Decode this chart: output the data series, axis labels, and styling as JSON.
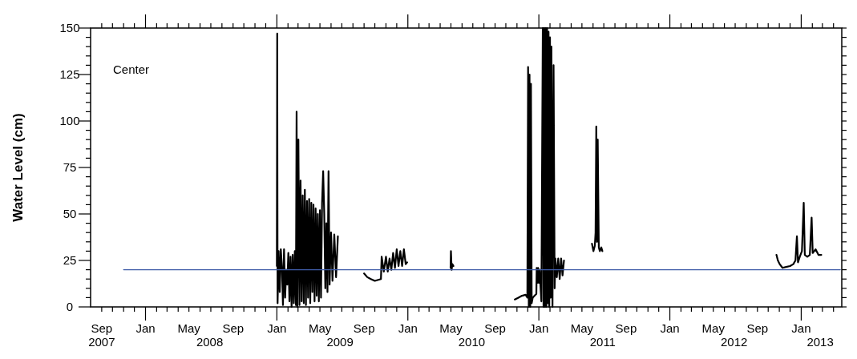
{
  "chart_data": {
    "type": "line",
    "ylabel": "Water Level (cm)",
    "annotations": [
      "Center"
    ],
    "xlim": [
      "2007-08-01",
      "2013-04-24"
    ],
    "ylim": [
      0,
      150
    ],
    "yticks": [
      0,
      {
        "value": 5,
        "label": null
      },
      {
        "value": 10,
        "label": null
      },
      {
        "value": 15,
        "label": null
      },
      {
        "value": 20,
        "label": null
      },
      25,
      {
        "value": 30,
        "label": null
      },
      {
        "value": 35,
        "label": null
      },
      {
        "value": 40,
        "label": null
      },
      {
        "value": 45,
        "label": null
      },
      50,
      {
        "value": 55,
        "label": null
      },
      {
        "value": 60,
        "label": null
      },
      {
        "value": 65,
        "label": null
      },
      {
        "value": 70,
        "label": null
      },
      75,
      {
        "value": 80,
        "label": null
      },
      {
        "value": 85,
        "label": null
      },
      {
        "value": 90,
        "label": null
      },
      {
        "value": 95,
        "label": null
      },
      100,
      {
        "value": 105,
        "label": null
      },
      {
        "value": 110,
        "label": null
      },
      {
        "value": 115,
        "label": null
      },
      {
        "value": 120,
        "label": null
      },
      125,
      {
        "value": 130,
        "label": null
      },
      {
        "value": 135,
        "label": null
      },
      {
        "value": 140,
        "label": null
      },
      {
        "value": 145,
        "label": null
      },
      150
    ],
    "x2lim": [
      "2007-08-01",
      "2013-04-24"
    ],
    "x2ticks": [
      {
        "value": "2007-09-01",
        "label": "2007"
      },
      {
        "value": "2008-06-28",
        "label": "2008"
      },
      {
        "value": "2009-06-26",
        "label": "2009"
      },
      {
        "value": "2010-06-28",
        "label": "2010"
      },
      {
        "value": "2011-06-28",
        "label": "2011"
      },
      {
        "value": "2012-06-28",
        "label": "2012"
      },
      {
        "value": "2013-02-23",
        "label": "2013"
      }
    ],
    "xticks": [
      {
        "value": "2007-09-01",
        "label": "Sep"
      },
      {
        "value": "2007-10-01",
        "label": null
      },
      {
        "value": "2007-11-01",
        "label": null
      },
      {
        "value": "2007-12-01",
        "label": null
      },
      {
        "value": "2008-01-01",
        "label": "Jan"
      },
      {
        "value": "2008-02-01",
        "label": null
      },
      {
        "value": "2008-03-01",
        "label": null
      },
      {
        "value": "2008-04-01",
        "label": null
      },
      {
        "value": "2008-05-01",
        "label": "May"
      },
      {
        "value": "2008-06-01",
        "label": null
      },
      {
        "value": "2008-07-01",
        "label": null
      },
      {
        "value": "2008-08-01",
        "label": null
      },
      {
        "value": "2008-09-01",
        "label": "Sep"
      },
      {
        "value": "2008-10-01",
        "label": null
      },
      {
        "value": "2008-11-01",
        "label": null
      },
      {
        "value": "2008-12-01",
        "label": null
      },
      {
        "value": "2009-01-01",
        "label": "Jan"
      },
      {
        "value": "2009-02-01",
        "label": null
      },
      {
        "value": "2009-03-01",
        "label": null
      },
      {
        "value": "2009-04-01",
        "label": null
      },
      {
        "value": "2009-05-01",
        "label": "May"
      },
      {
        "value": "2009-06-01",
        "label": null
      },
      {
        "value": "2009-07-01",
        "label": null
      },
      {
        "value": "2009-08-01",
        "label": null
      },
      {
        "value": "2009-09-01",
        "label": "Sep"
      },
      {
        "value": "2009-10-01",
        "label": null
      },
      {
        "value": "2009-11-01",
        "label": null
      },
      {
        "value": "2009-12-01",
        "label": null
      },
      {
        "value": "2010-01-01",
        "label": "Jan"
      },
      {
        "value": "2010-02-01",
        "label": null
      },
      {
        "value": "2010-03-01",
        "label": null
      },
      {
        "value": "2010-04-01",
        "label": null
      },
      {
        "value": "2010-05-01",
        "label": "May"
      },
      {
        "value": "2010-06-01",
        "label": null
      },
      {
        "value": "2010-07-01",
        "label": null
      },
      {
        "value": "2010-08-01",
        "label": null
      },
      {
        "value": "2010-09-01",
        "label": "Sep"
      },
      {
        "value": "2010-10-01",
        "label": null
      },
      {
        "value": "2010-11-01",
        "label": null
      },
      {
        "value": "2010-12-01",
        "label": null
      },
      {
        "value": "2011-01-01",
        "label": "Jan"
      },
      {
        "value": "2011-02-01",
        "label": null
      },
      {
        "value": "2011-03-01",
        "label": null
      },
      {
        "value": "2011-04-01",
        "label": null
      },
      {
        "value": "2011-05-01",
        "label": "May"
      },
      {
        "value": "2011-06-01",
        "label": null
      },
      {
        "value": "2011-07-01",
        "label": null
      },
      {
        "value": "2011-08-01",
        "label": null
      },
      {
        "value": "2011-09-01",
        "label": "Sep"
      },
      {
        "value": "2011-10-01",
        "label": null
      },
      {
        "value": "2011-11-01",
        "label": null
      },
      {
        "value": "2011-12-01",
        "label": null
      },
      {
        "value": "2012-01-01",
        "label": "Jan"
      },
      {
        "value": "2012-02-01",
        "label": null
      },
      {
        "value": "2012-03-01",
        "label": null
      },
      {
        "value": "2012-04-01",
        "label": null
      },
      {
        "value": "2012-05-01",
        "label": "May"
      },
      {
        "value": "2012-06-01",
        "label": null
      },
      {
        "value": "2012-07-01",
        "label": null
      },
      {
        "value": "2012-08-01",
        "label": null
      },
      {
        "value": "2012-09-01",
        "label": "Sep"
      },
      {
        "value": "2012-10-01",
        "label": null
      },
      {
        "value": "2012-11-01",
        "label": null
      },
      {
        "value": "2012-12-01",
        "label": null
      },
      {
        "value": "2013-01-01",
        "label": "Jan"
      },
      {
        "value": "2013-02-01",
        "label": null
      },
      {
        "value": "2013-03-01",
        "label": null
      },
      {
        "value": "2013-04-01",
        "label": null
      }
    ],
    "series": [
      {
        "color": "#000000",
        "x": [
          "2009-01-01",
          "2009-01-02",
          "2009-01-03",
          "2009-01-06",
          "2009-01-09",
          "2009-01-12",
          "2009-01-15",
          "2009-01-18",
          "2009-01-21",
          "2009-01-24",
          "2009-01-27",
          "2009-01-30",
          "2009-02-02",
          "2009-02-05",
          "2009-02-08",
          "2009-02-11",
          "2009-02-14",
          "2009-02-17",
          "2009-02-20",
          "2009-02-23",
          "2009-02-25",
          "2009-02-27",
          "2009-03-02",
          "2009-03-05",
          "2009-03-08",
          "2009-03-11",
          "2009-03-14",
          "2009-03-17",
          "2009-03-20",
          "2009-03-23",
          "2009-03-26",
          "2009-03-29",
          "2009-04-01",
          "2009-04-04",
          "2009-04-07",
          "2009-04-10",
          "2009-04-13",
          "2009-04-16",
          "2009-04-19",
          "2009-04-22",
          "2009-04-25",
          "2009-04-28",
          "2009-05-01",
          "2009-05-04",
          "2009-05-07",
          "2009-05-10",
          "2009-05-13",
          "2009-05-16",
          "2009-05-19",
          "2009-05-22",
          "2009-05-25",
          "2009-05-28",
          "2009-06-01",
          "2009-06-05",
          "2009-06-10",
          "2009-06-15",
          "2009-06-20",
          "2009-07-20",
          "2009-09-01",
          "2009-09-10",
          "2009-09-20",
          "2009-10-01",
          "2009-10-18",
          "2009-10-20",
          "2009-10-26",
          "2009-11-01",
          "2009-11-06",
          "2009-11-11",
          "2009-11-16",
          "2009-11-21",
          "2009-11-26",
          "2009-12-01",
          "2009-12-06",
          "2009-12-11",
          "2009-12-16",
          "2009-12-21",
          "2009-12-26",
          "2009-12-30",
          "2010-02-15",
          "2010-04-30",
          "2010-05-01",
          "2010-05-03",
          "2010-05-05",
          "2010-05-08",
          "2010-07-01",
          "2010-10-26",
          "2010-11-05",
          "2010-11-15",
          "2010-11-25",
          "2010-11-30",
          "2010-12-02",
          "2010-12-04",
          "2010-12-06",
          "2010-12-08",
          "2010-12-10",
          "2010-12-12",
          "2010-12-15",
          "2010-12-20",
          "2010-12-25",
          "2010-12-26",
          "2010-12-28",
          "2010-12-30",
          "2011-01-01",
          "2011-01-03",
          "2011-01-08",
          "2011-01-12",
          "2011-01-14",
          "2011-01-16",
          "2011-01-18",
          "2011-01-20",
          "2011-01-22",
          "2011-01-24",
          "2011-01-26",
          "2011-01-28",
          "2011-01-30",
          "2011-02-01",
          "2011-02-03",
          "2011-02-05",
          "2011-02-08",
          "2011-02-11",
          "2011-02-14",
          "2011-02-16",
          "2011-02-20",
          "2011-02-24",
          "2011-02-28",
          "2011-03-04",
          "2011-03-08",
          "2011-03-12",
          "2011-04-15",
          "2011-05-29",
          "2011-06-02",
          "2011-06-06",
          "2011-06-08",
          "2011-06-10",
          "2011-06-12",
          "2011-06-14",
          "2011-06-17",
          "2011-06-20",
          "2011-06-24",
          "2011-06-27",
          "2011-09-01",
          "2012-10-24",
          "2012-10-28",
          "2012-11-02",
          "2012-11-10",
          "2012-11-20",
          "2012-12-01",
          "2012-12-10",
          "2012-12-16",
          "2012-12-20",
          "2012-12-23",
          "2012-12-28",
          "2013-01-03",
          "2013-01-08",
          "2013-01-11",
          "2013-01-18",
          "2013-01-25",
          "2013-01-30",
          "2013-02-02",
          "2013-02-10",
          "2013-02-18",
          "2013-02-26"
        ],
        "values": [
          22,
          147,
          2,
          30,
          8,
          31,
          22,
          1,
          31,
          5,
          20,
          12,
          29,
          3,
          27,
          0,
          28,
          2,
          30,
          1,
          105,
          0,
          90,
          1,
          68,
          3,
          60,
          2,
          63,
          1,
          57,
          5,
          58,
          2,
          56,
          8,
          55,
          3,
          53,
          6,
          50,
          3,
          52,
          5,
          56,
          73,
          50,
          10,
          45,
          8,
          73,
          12,
          40,
          14,
          39,
          16,
          38,
          null,
          18,
          16,
          15,
          14,
          15,
          27,
          19,
          27,
          19,
          26,
          20,
          29,
          21,
          31,
          22,
          30,
          22,
          31,
          23,
          24,
          null,
          21,
          30,
          20,
          23,
          22,
          null,
          4,
          5,
          6,
          6.5,
          5,
          129,
          0,
          125,
          0,
          120,
          2,
          5,
          6,
          7,
          21,
          13,
          21,
          13,
          20,
          3,
          150,
          0,
          150,
          0,
          150,
          0,
          150,
          2,
          148,
          0,
          145,
          5,
          140,
          0,
          130,
          10,
          26,
          16,
          26,
          15,
          26,
          17,
          25,
          null,
          34,
          30,
          33,
          40,
          97,
          35,
          90,
          32,
          30,
          32,
          30,
          null,
          28,
          25,
          23,
          21,
          21.5,
          22,
          23,
          25,
          38,
          24,
          27,
          30,
          56,
          28,
          27,
          28,
          48,
          29,
          31,
          28,
          28
        ]
      },
      {
        "color": "#3f5ca8",
        "x": [
          "2007-11-01",
          "2013-04-20"
        ],
        "values": [
          20,
          20
        ]
      }
    ]
  }
}
